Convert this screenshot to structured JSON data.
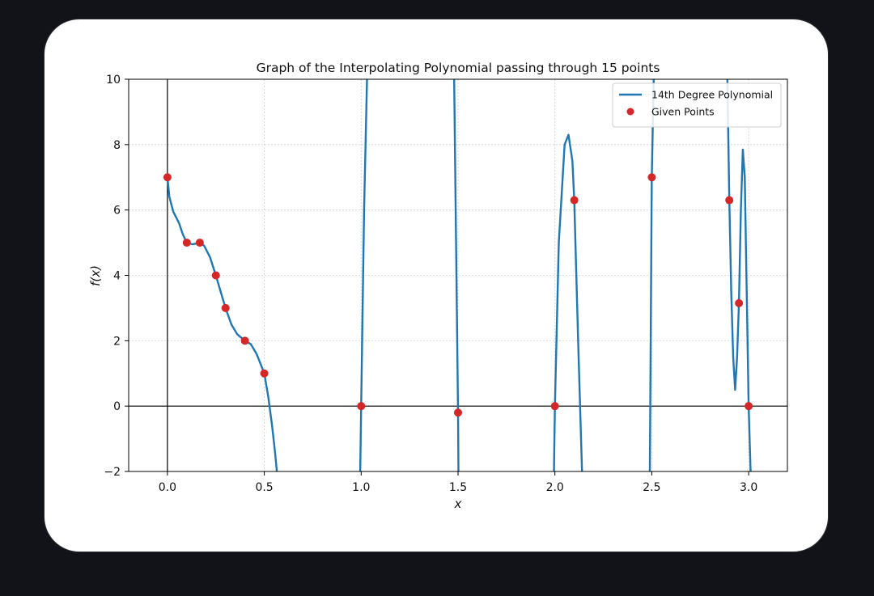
{
  "chart_data": {
    "type": "line",
    "title": "Graph of the Interpolating Polynomial passing through 15 points",
    "xlabel": "x",
    "ylabel": "f(x)",
    "xlim": [
      -0.2,
      3.2
    ],
    "ylim": [
      -2,
      10
    ],
    "x_ticks": [
      0.0,
      0.5,
      1.0,
      1.5,
      2.0,
      2.5,
      3.0
    ],
    "x_tick_labels": [
      "0.0",
      "0.5",
      "1.0",
      "1.5",
      "2.0",
      "2.5",
      "3.0"
    ],
    "y_ticks": [
      -2,
      0,
      2,
      4,
      6,
      8,
      10
    ],
    "y_tick_labels": [
      "−2",
      "0",
      "2",
      "4",
      "6",
      "8",
      "10"
    ],
    "grid": true,
    "legend_position": "top-right",
    "series": [
      {
        "name": "14th Degree Polynomial",
        "kind": "line",
        "color": "#1f77b4",
        "segments": [
          [
            [
              0.0,
              7.0
            ],
            [
              0.01,
              6.4
            ],
            [
              0.03,
              5.95
            ],
            [
              0.06,
              5.6
            ],
            [
              0.08,
              5.25
            ],
            [
              0.1,
              5.0
            ],
            [
              0.13,
              4.95
            ],
            [
              0.17,
              5.0
            ],
            [
              0.19,
              4.9
            ],
            [
              0.22,
              4.55
            ],
            [
              0.25,
              4.0
            ],
            [
              0.28,
              3.4
            ],
            [
              0.3,
              3.0
            ],
            [
              0.33,
              2.5
            ],
            [
              0.36,
              2.2
            ],
            [
              0.4,
              2.0
            ],
            [
              0.43,
              1.9
            ],
            [
              0.46,
              1.6
            ],
            [
              0.48,
              1.3
            ],
            [
              0.5,
              1.0
            ],
            [
              0.52,
              0.3
            ],
            [
              0.54,
              -0.6
            ],
            [
              0.555,
              -1.4
            ],
            [
              0.565,
              -2.0
            ]
          ],
          [
            [
              0.995,
              -2.0
            ],
            [
              1.0,
              0.0
            ],
            [
              1.015,
              6.0
            ],
            [
              1.03,
              10.0
            ]
          ],
          [
            [
              1.48,
              10.0
            ],
            [
              1.5,
              -0.2
            ],
            [
              1.502,
              -2.0
            ]
          ],
          [
            [
              1.995,
              -2.0
            ],
            [
              2.0,
              0.0
            ],
            [
              2.02,
              5.0
            ],
            [
              2.05,
              8.0
            ],
            [
              2.07,
              8.3
            ],
            [
              2.09,
              7.5
            ],
            [
              2.1,
              6.3
            ],
            [
              2.12,
              2.0
            ],
            [
              2.13,
              0.0
            ],
            [
              2.14,
              -2.0
            ]
          ],
          [
            [
              2.49,
              -2.0
            ],
            [
              2.5,
              7.0
            ],
            [
              2.51,
              10.0
            ]
          ],
          [
            [
              2.89,
              10.0
            ],
            [
              2.9,
              6.3
            ],
            [
              2.91,
              3.5
            ],
            [
              2.92,
              1.5
            ],
            [
              2.93,
              0.5
            ],
            [
              2.94,
              1.5
            ],
            [
              2.95,
              3.15
            ],
            [
              2.96,
              6.0
            ],
            [
              2.97,
              7.85
            ],
            [
              2.98,
              7.0
            ],
            [
              2.99,
              3.5
            ],
            [
              3.0,
              0.0
            ],
            [
              3.01,
              -2.0
            ]
          ]
        ]
      },
      {
        "name": "Given Points",
        "kind": "scatter",
        "color": "#d62728",
        "x": [
          0.0,
          0.1,
          0.167,
          0.25,
          0.3,
          0.4,
          0.5,
          1.0,
          1.5,
          2.0,
          2.1,
          2.5,
          2.9,
          2.95,
          3.0
        ],
        "y": [
          7.0,
          5.0,
          5.0,
          4.0,
          3.0,
          2.0,
          1.0,
          0.0,
          -0.2,
          0.0,
          6.3,
          7.0,
          6.3,
          3.15,
          0.0
        ]
      }
    ]
  }
}
